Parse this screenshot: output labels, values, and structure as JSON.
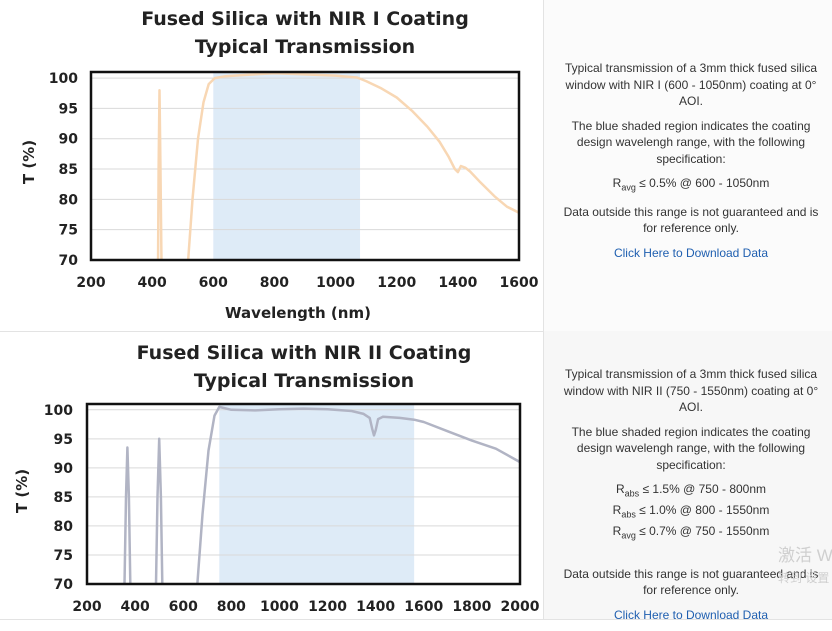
{
  "panels": [
    {
      "title_line1": "Fused Silica with NIR I Coating",
      "title_line2": "Typical Transmission",
      "description": "Typical transmission of a 3mm thick fused silica window with NIR I (600 - 1050nm) coating at 0° AOI.",
      "shaded_note": "The blue shaded region indicates the coating design wavelengh range, with the following specification:",
      "specs": [
        {
          "r": "R",
          "sub": "avg",
          "text": " ≤ 0.5% @ 600 - 1050nm"
        }
      ],
      "disclaimer": "Data outside this range is not guaranteed and is for reference only.",
      "link": "Click Here to Download Data"
    },
    {
      "title_line1": "Fused Silica with NIR II Coating",
      "title_line2": "Typical Transmission",
      "description": "Typical transmission of a 3mm thick fused silica window with NIR II (750 - 1550nm) coating at 0° AOI.",
      "shaded_note": "The blue shaded region indicates the coating design wavelengh range, with the following specification:",
      "specs": [
        {
          "r": "R",
          "sub": "abs",
          "text": " ≤ 1.5% @ 750 - 800nm"
        },
        {
          "r": "R",
          "sub": "abs",
          "text": " ≤ 1.0% @ 800 - 1550nm"
        },
        {
          "r": "R",
          "sub": "avg",
          "text": " ≤ 0.7% @ 750 - 1550nm"
        }
      ],
      "disclaimer": "Data outside this range is not guaranteed and is for reference only.",
      "link": "Click Here to Download Data"
    }
  ],
  "watermark": {
    "line1": "激活 W",
    "line2": "转到 设置"
  },
  "chart_data": [
    {
      "type": "line",
      "title": "Fused Silica with NIR I Coating Typical Transmission",
      "xlabel": "Wavelength (nm)",
      "ylabel": "T (%)",
      "xlim": [
        200,
        1600
      ],
      "ylim": [
        70,
        101
      ],
      "xticks": [
        200,
        400,
        600,
        800,
        1000,
        1200,
        1400,
        1600
      ],
      "yticks": [
        70,
        75,
        80,
        85,
        90,
        95,
        100
      ],
      "shaded_range": [
        600,
        1080
      ],
      "grid": true,
      "colors": {
        "line": "#f8d7b4",
        "shade": "#deebf7"
      },
      "series": [
        {
          "segments": [
            [
              [
                419,
                68
              ],
              [
                421,
                85
              ],
              [
                424,
                98
              ],
              [
                427,
                86
              ],
              [
                431,
                68
              ]
            ],
            [
              [
                515,
                68
              ],
              [
                532,
                80
              ],
              [
                550,
                90
              ],
              [
                568,
                96
              ],
              [
                585,
                99
              ],
              [
                605,
                100
              ],
              [
                640,
                100.3
              ],
              [
                700,
                100.5
              ],
              [
                800,
                100.8
              ],
              [
                900,
                100.6
              ],
              [
                1000,
                100.4
              ],
              [
                1070,
                100.1
              ],
              [
                1100,
                99.5
              ],
              [
                1150,
                98.3
              ],
              [
                1200,
                96.8
              ],
              [
                1250,
                94.6
              ],
              [
                1300,
                92
              ],
              [
                1340,
                89.5
              ],
              [
                1370,
                87
              ],
              [
                1390,
                85
              ],
              [
                1400,
                84.5
              ],
              [
                1410,
                85.5
              ],
              [
                1425,
                85.2
              ],
              [
                1440,
                84.6
              ],
              [
                1470,
                83
              ],
              [
                1520,
                80.5
              ],
              [
                1560,
                78.8
              ],
              [
                1600,
                77.8
              ]
            ]
          ]
        }
      ]
    },
    {
      "type": "line",
      "title": "Fused Silica with NIR II Coating Typical Transmission",
      "xlabel": "",
      "ylabel": "T (%)",
      "xlim": [
        200,
        2000
      ],
      "ylim": [
        70,
        101
      ],
      "xticks": [
        200,
        400,
        600,
        800,
        1000,
        1200,
        1400,
        1600,
        1800,
        2000
      ],
      "yticks": [
        70,
        75,
        80,
        85,
        90,
        95,
        100
      ],
      "shaded_range": [
        750,
        1560
      ],
      "grid": true,
      "colors": {
        "line": "#b1b4c4",
        "shade": "#deebf7"
      },
      "series": [
        {
          "segments": [
            [
              [
                355,
                68
              ],
              [
                362,
                85
              ],
              [
                368,
                93.5
              ],
              [
                374,
                85
              ],
              [
                381,
                68
              ]
            ],
            [
              [
                486,
                68
              ],
              [
                493,
                85
              ],
              [
                500,
                95
              ],
              [
                507,
                85
              ],
              [
                514,
                68
              ]
            ],
            [
              [
                655,
                68
              ],
              [
                680,
                82
              ],
              [
                705,
                93
              ],
              [
                730,
                99
              ],
              [
                750,
                100.5
              ],
              [
                800,
                100
              ],
              [
                900,
                99.9
              ],
              [
                1000,
                100.1
              ],
              [
                1100,
                100.2
              ],
              [
                1200,
                100.1
              ],
              [
                1300,
                99.8
              ],
              [
                1350,
                99.3
              ],
              [
                1375,
                98.6
              ],
              [
                1385,
                96.8
              ],
              [
                1393,
                95.6
              ],
              [
                1400,
                96.5
              ],
              [
                1410,
                98.4
              ],
              [
                1430,
                98.8
              ],
              [
                1500,
                98.6
              ],
              [
                1560,
                98.3
              ],
              [
                1600,
                97.9
              ],
              [
                1700,
                96.3
              ],
              [
                1800,
                94.7
              ],
              [
                1900,
                93.3
              ],
              [
                2000,
                91
              ]
            ]
          ]
        }
      ]
    }
  ]
}
